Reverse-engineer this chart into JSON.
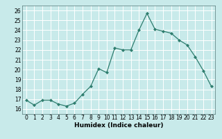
{
  "x": [
    0,
    1,
    2,
    3,
    4,
    5,
    6,
    7,
    8,
    9,
    10,
    11,
    12,
    13,
    14,
    15,
    16,
    17,
    18,
    19,
    20,
    21,
    22,
    23
  ],
  "y": [
    16.9,
    16.4,
    16.9,
    16.9,
    16.5,
    16.3,
    16.6,
    17.5,
    18.3,
    20.1,
    19.7,
    22.2,
    22.0,
    22.0,
    24.0,
    25.7,
    24.1,
    23.9,
    23.7,
    23.0,
    22.5,
    21.3,
    19.9,
    18.3
  ],
  "xlabel": "Humidex (Indice chaleur)",
  "xlim": [
    -0.5,
    23.5
  ],
  "ylim": [
    15.5,
    26.5
  ],
  "yticks": [
    16,
    17,
    18,
    19,
    20,
    21,
    22,
    23,
    24,
    25,
    26
  ],
  "xticks": [
    0,
    1,
    2,
    3,
    4,
    5,
    6,
    7,
    8,
    9,
    10,
    11,
    12,
    13,
    14,
    15,
    16,
    17,
    18,
    19,
    20,
    21,
    22,
    23
  ],
  "line_color": "#2e7d6e",
  "marker": "D",
  "marker_size": 2.0,
  "line_width": 0.9,
  "bg_color": "#c8eaea",
  "grid_color": "#ffffff",
  "label_fontsize": 6.5,
  "tick_fontsize": 5.5
}
